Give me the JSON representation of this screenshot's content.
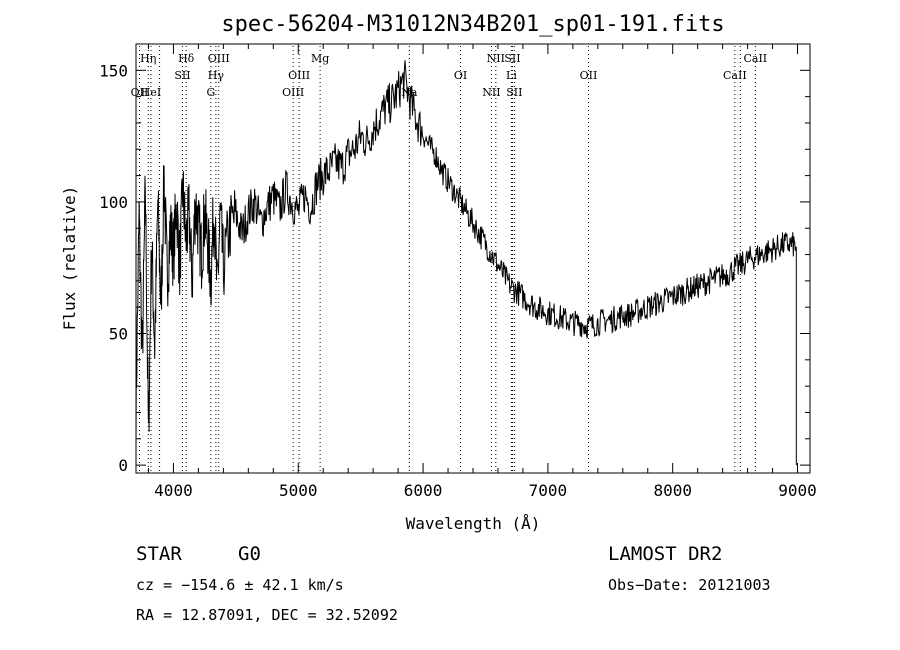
{
  "chart_data": {
    "type": "line",
    "title": "spec-56204-M31012N34B201_sp01-191.fits",
    "xlabel": "Wavelength (Å)",
    "ylabel": "Flux (relative)",
    "xlim": [
      3700,
      9100
    ],
    "ylim": [
      -3,
      160
    ],
    "x_ticks": [
      4000,
      5000,
      6000,
      7000,
      8000,
      9000
    ],
    "y_ticks": [
      0,
      50,
      100,
      150
    ],
    "grid": false,
    "series": [
      {
        "x": [
          3700,
          3725,
          3750,
          3775,
          3800,
          3825,
          3850,
          3875,
          3900,
          3925,
          3950,
          3975,
          4000,
          4025,
          4050,
          4075,
          4100,
          4125,
          4150,
          4175,
          4200,
          4225,
          4250,
          4275,
          4300,
          4325,
          4350,
          4375,
          4400,
          4450,
          4500,
          4550,
          4600,
          4650,
          4700,
          4750,
          4800,
          4850,
          4900,
          4950,
          5000,
          5050,
          5100,
          5150,
          5200,
          5250,
          5300,
          5350,
          5400,
          5450,
          5500,
          5550,
          5600,
          5650,
          5700,
          5750,
          5800,
          5850,
          5900,
          5950,
          6000,
          6050,
          6100,
          6150,
          6200,
          6250,
          6300,
          6350,
          6400,
          6450,
          6500,
          6550,
          6600,
          6650,
          6700,
          6750,
          6800,
          6850,
          6900,
          6950,
          7000,
          7050,
          7100,
          7150,
          7200,
          7250,
          7300,
          7350,
          7400,
          7450,
          7500,
          7550,
          7600,
          7650,
          7700,
          7750,
          7800,
          7850,
          7900,
          7950,
          8000,
          8050,
          8100,
          8150,
          8200,
          8250,
          8300,
          8350,
          8400,
          8450,
          8500,
          8550,
          8600,
          8650,
          8700,
          8750,
          8800,
          8850,
          8900,
          8950,
          8990
        ],
        "values": [
          20,
          95,
          40,
          105,
          10,
          85,
          45,
          100,
          60,
          110,
          70,
          90,
          80,
          100,
          75,
          105,
          85,
          95,
          70,
          100,
          90,
          80,
          95,
          85,
          70,
          100,
          65,
          95,
          75,
          90,
          95,
          88,
          96,
          100,
          92,
          98,
          102,
          97,
          105,
          100,
          96,
          103,
          98,
          107,
          110,
          112,
          115,
          113,
          118,
          120,
          125,
          123,
          128,
          132,
          136,
          138,
          142,
          147,
          138,
          131,
          126,
          121,
          118,
          112,
          108,
          104,
          100,
          96,
          92,
          88,
          84,
          80,
          76,
          72,
          68,
          66,
          64,
          62,
          60,
          59,
          58,
          57,
          56,
          55,
          54,
          54,
          53,
          53,
          54,
          55,
          55,
          56,
          57,
          57,
          58,
          59,
          60,
          61,
          62,
          63,
          64,
          65,
          66,
          67,
          68,
          69,
          70,
          71,
          72,
          73,
          75,
          76,
          78,
          79,
          80,
          81,
          82,
          83,
          84,
          84,
          83
        ]
      }
    ],
    "lines": [
      {
        "x": 3728,
        "label": "OII",
        "row": 3
      },
      {
        "x": 3798,
        "label": "Hη",
        "row": 1
      },
      {
        "x": 3820,
        "label": "HeI",
        "row": 3
      },
      {
        "x": 3889,
        "label": "",
        "row": 0
      },
      {
        "x": 4072,
        "label": "SII",
        "row": 2
      },
      {
        "x": 4102,
        "label": "Hδ",
        "row": 1
      },
      {
        "x": 4300,
        "label": "G",
        "row": 3
      },
      {
        "x": 4340,
        "label": "Hγ",
        "row": 2
      },
      {
        "x": 4363,
        "label": "OIII",
        "row": 1
      },
      {
        "x": 4959,
        "label": "OIII",
        "row": 3
      },
      {
        "x": 5007,
        "label": "OIII",
        "row": 2
      },
      {
        "x": 5175,
        "label": "Mg",
        "row": 1
      },
      {
        "x": 5890,
        "label": "Na",
        "row": 3
      },
      {
        "x": 6300,
        "label": "OI",
        "row": 2
      },
      {
        "x": 6548,
        "label": "NII",
        "row": 3
      },
      {
        "x": 6583,
        "label": "NII",
        "row": 1
      },
      {
        "x": 6708,
        "label": "Li",
        "row": 2
      },
      {
        "x": 6716,
        "label": "SII",
        "row": 1
      },
      {
        "x": 6731,
        "label": "SII",
        "row": 3
      },
      {
        "x": 7325,
        "label": "OII",
        "row": 2
      },
      {
        "x": 8498,
        "label": "CaII",
        "row": 2
      },
      {
        "x": 8542,
        "label": "",
        "row": 0
      },
      {
        "x": 8662,
        "label": "CaII",
        "row": 1
      }
    ]
  },
  "info": {
    "object_class": "STAR",
    "subclass": "G0",
    "survey": "LAMOST DR2",
    "cz": "cz = −154.6 ± 42.1 km/s",
    "obs_date": "Obs−Date: 20121003",
    "radec": "RA =  12.87091, DEC =  32.52092"
  }
}
